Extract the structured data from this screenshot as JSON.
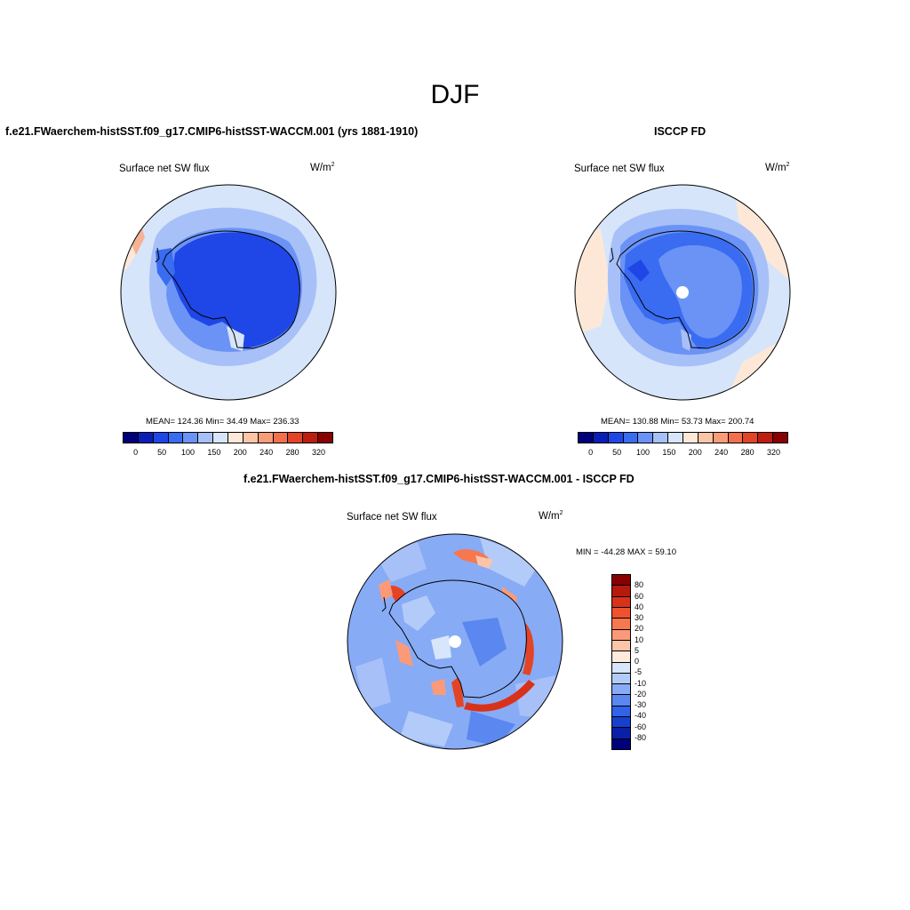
{
  "figure": {
    "title": "DJF"
  },
  "panels": [
    {
      "title": "f.e21.FWaerchem-histSST.f09_g17.CMIP6-histSST-WACCM.001 (yrs 1881-1910)",
      "var_label": "Surface net SW flux",
      "units_base": "W/m",
      "units_sup": "2",
      "stats": "MEAN= 124.36  Min=  34.49  Max= 236.33"
    },
    {
      "title": "ISCCP FD",
      "var_label": "Surface net SW flux",
      "units_base": "W/m",
      "units_sup": "2",
      "stats": "MEAN= 130.88  Min=  53.73  Max= 200.74"
    },
    {
      "title": "f.e21.FWaerchem-histSST.f09_g17.CMIP6-histSST-WACCM.001 - ISCCP FD",
      "var_label": "Surface net SW flux",
      "units_base": "W/m",
      "units_sup": "2",
      "stats": "MIN = -44.28 MAX =  59.10"
    }
  ],
  "colorbar_abs": {
    "labels": [
      "0",
      "50",
      "100",
      "150",
      "200",
      "240",
      "280",
      "320"
    ],
    "colors": [
      "#00007a",
      "#0a1fb5",
      "#1f46e6",
      "#3a6cf2",
      "#6b93f5",
      "#a7c0f8",
      "#d6e5fa",
      "#fde8d8",
      "#fcc5a8",
      "#f99d79",
      "#f2704d",
      "#e34426",
      "#bd1e10",
      "#8a0000"
    ]
  },
  "colorbar_diff": {
    "labels": [
      "80",
      "60",
      "40",
      "30",
      "20",
      "10",
      "5",
      "0",
      "-5",
      "-10",
      "-20",
      "-30",
      "-40",
      "-60",
      "-80"
    ],
    "colors": [
      "#8a0000",
      "#b51a0c",
      "#d9321b",
      "#ef5230",
      "#f7774f",
      "#fb9a78",
      "#fcc4a8",
      "#fdeadc",
      "#d7e6fa",
      "#b3cbf8",
      "#88abf5",
      "#5a87f0",
      "#3163e9",
      "#1840cf",
      "#0a1fa8",
      "#00007a"
    ]
  },
  "map_colors": {
    "ocean_low": "#d6e5fa",
    "ocean_mid": "#a7c0f8",
    "ocean_high": "#6b93f5",
    "land": "#1f46e6",
    "land_light": "#3a6cf2",
    "warm_light": "#fde8d8",
    "warm_mid": "#f7b194",
    "diff_base": "#88abf5",
    "diff_red": "#e34426",
    "diff_dark_red": "#bd1e10"
  }
}
